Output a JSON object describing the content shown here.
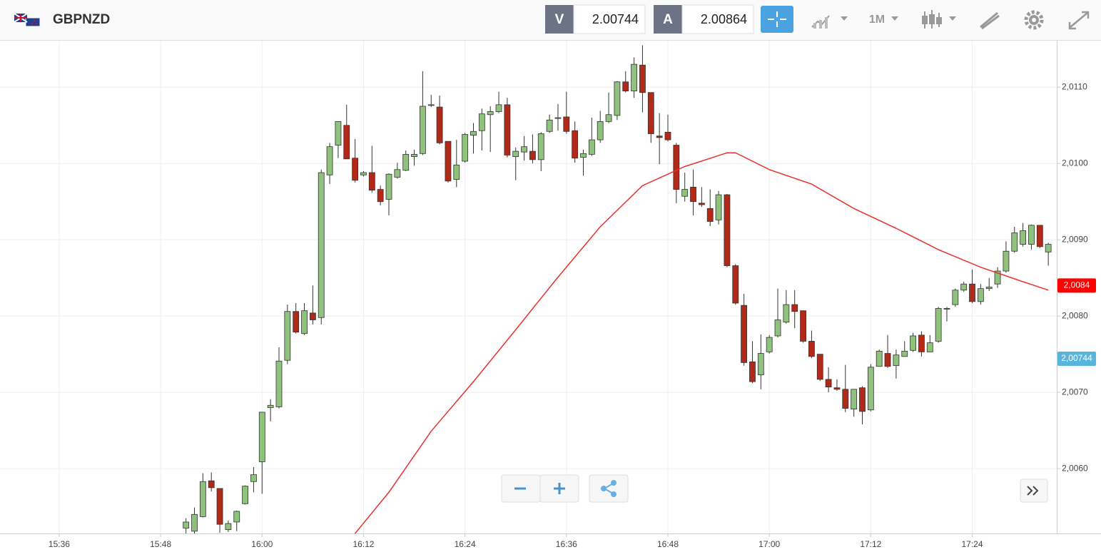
{
  "header": {
    "symbol": "GBPNZD",
    "bid_label": "V",
    "bid": "2.00744",
    "ask_label": "A",
    "ask": "2.00864",
    "timeframe": "1M"
  },
  "chart_data": {
    "type": "candlestick",
    "x": [
      "15:51",
      "15:52",
      "15:53",
      "15:54",
      "15:55",
      "15:56",
      "15:57",
      "15:58",
      "15:59",
      "16:00",
      "16:01",
      "16:02",
      "16:03",
      "16:04",
      "16:05",
      "16:06",
      "16:07",
      "16:08",
      "16:09",
      "16:10",
      "16:11",
      "16:12",
      "16:13",
      "16:14",
      "16:15",
      "16:16",
      "16:17",
      "16:18",
      "16:19",
      "16:20",
      "16:21",
      "16:22",
      "16:23",
      "16:24",
      "16:25",
      "16:26",
      "16:27",
      "16:28",
      "16:29",
      "16:30",
      "16:31",
      "16:32",
      "16:33",
      "16:34",
      "16:35",
      "16:36",
      "16:37",
      "16:38",
      "16:39",
      "16:40",
      "16:41",
      "16:42",
      "16:43",
      "16:44",
      "16:45",
      "16:46",
      "16:47",
      "16:48",
      "16:49",
      "16:50",
      "16:51",
      "16:52",
      "16:53",
      "16:54",
      "16:55",
      "16:56",
      "16:57",
      "16:58",
      "16:59",
      "17:00",
      "17:01",
      "17:02",
      "17:03",
      "17:04",
      "17:05",
      "17:06",
      "17:07",
      "17:08",
      "17:09",
      "17:10",
      "17:11",
      "17:12",
      "17:13",
      "17:14",
      "17:15",
      "17:16",
      "17:17",
      "17:18",
      "17:19",
      "17:20",
      "17:21",
      "17:22",
      "17:23",
      "17:24",
      "17:25",
      "17:26",
      "17:27",
      "17:28",
      "17:29",
      "17:30",
      "17:31",
      "17:32",
      "17:33"
    ],
    "open": [
      2.00522,
      2.00518,
      2.00537,
      2.00584,
      2.00574,
      2.0052,
      2.0053,
      2.00554,
      2.00583,
      2.00609,
      2.0068,
      2.00681,
      2.00742,
      2.00806,
      2.00777,
      2.00804,
      2.00798,
      2.00985,
      2.01024,
      2.0105,
      2.01007,
      2.00985,
      2.00988,
      2.00966,
      2.00953,
      2.00982,
      2.00991,
      2.01009,
      2.01013,
      2.01076,
      2.01074,
      2.01029,
      2.00979,
      2.01003,
      2.01037,
      2.01043,
      2.01064,
      2.01068,
      2.01077,
      2.01009,
      2.01015,
      2.01016,
      2.01005,
      2.01042,
      2.01059,
      2.01061,
      2.01043,
      2.01008,
      2.01012,
      2.01031,
      2.01055,
      2.01063,
      2.01107,
      2.01095,
      2.01129,
      2.01093,
      2.01036,
      2.01041,
      2.01024,
      2.00957,
      2.00969,
      2.00948,
      2.00941,
      2.00926,
      2.00959,
      2.00866,
      2.00814,
      2.0074,
      2.00723,
      2.00753,
      2.00774,
      2.00792,
      2.00815,
      2.00807,
      2.00767,
      2.0075,
      2.00717,
      2.00706,
      2.00704,
      2.00678,
      2.00706,
      2.00677,
      2.00734,
      2.00751,
      2.00735,
      2.00747,
      2.00755,
      2.00775,
      2.00753,
      2.00767,
      2.00809,
      2.00815,
      2.00834,
      2.00842,
      2.00819,
      2.00836,
      2.00842,
      2.00859,
      2.00885,
      2.00894,
      2.00894,
      2.00919,
      2.00884
    ],
    "high": [
      2.00535,
      2.00549,
      2.00594,
      2.00595,
      2.00574,
      2.00532,
      2.00545,
      2.00578,
      2.00602,
      2.00674,
      2.00691,
      2.00759,
      2.00815,
      2.00817,
      2.00817,
      2.0084,
      2.00992,
      2.01027,
      2.01055,
      2.01077,
      2.01032,
      2.0099,
      2.01023,
      2.00971,
      2.00987,
      2.01001,
      2.01017,
      2.01018,
      2.01121,
      2.0109,
      2.01089,
      2.01029,
      2.01031,
      2.0104,
      2.01053,
      2.01072,
      2.01075,
      2.01094,
      2.01086,
      2.01021,
      2.01036,
      2.01038,
      2.01041,
      2.01064,
      2.01078,
      2.01094,
      2.01055,
      2.01018,
      2.0106,
      2.01069,
      2.01093,
      2.01108,
      2.01121,
      2.01139,
      2.01155,
      2.01093,
      2.01066,
      2.01064,
      2.01027,
      2.00988,
      2.00992,
      2.00969,
      2.00966,
      2.00964,
      2.0096,
      2.00868,
      2.00829,
      2.00767,
      2.00776,
      2.00775,
      2.00836,
      2.00834,
      2.00834,
      2.00807,
      2.00781,
      2.0075,
      2.00733,
      2.00717,
      2.00736,
      2.00704,
      2.00708,
      2.00737,
      2.00756,
      2.00775,
      2.00756,
      2.00767,
      2.00778,
      2.0078,
      2.00775,
      2.00812,
      2.00812,
      2.00836,
      2.00845,
      2.00861,
      2.00842,
      2.0085,
      2.00864,
      2.00898,
      2.00917,
      2.00922,
      2.0092,
      2.00919,
      2.00896
    ],
    "low": [
      2.00515,
      2.00515,
      2.00536,
      2.0057,
      2.00516,
      2.00517,
      2.00518,
      2.00553,
      2.00569,
      2.00567,
      2.00662,
      2.00679,
      2.00737,
      2.00777,
      2.00775,
      2.00789,
      2.00789,
      2.00973,
      2.01007,
      2.01006,
      2.00975,
      2.00983,
      2.00962,
      2.00945,
      2.00932,
      2.0098,
      2.0099,
      2.00997,
      2.01011,
      2.01074,
      2.01025,
      2.00975,
      2.00969,
      2.01001,
      2.01013,
      2.01017,
      2.01015,
      2.01066,
      2.01008,
      2.00978,
      2.01004,
      2.01,
      2.0099,
      2.0104,
      2.01043,
      2.01039,
      2.01001,
      2.00984,
      2.0101,
      2.01027,
      2.01053,
      2.01057,
      2.01093,
      2.01086,
      2.01067,
      2.01027,
      2.00999,
      2.01029,
      2.00948,
      2.0095,
      2.00932,
      2.00943,
      2.00918,
      2.0092,
      2.00864,
      2.00815,
      2.00735,
      2.00712,
      2.00704,
      2.00751,
      2.00772,
      2.0079,
      2.00784,
      2.00765,
      2.00745,
      2.00715,
      2.007,
      2.00702,
      2.00674,
      2.00668,
      2.00658,
      2.00675,
      2.00734,
      2.00732,
      2.00718,
      2.00747,
      2.00753,
      2.00747,
      2.00753,
      2.00765,
      2.00793,
      2.00812,
      2.00832,
      2.00817,
      2.00815,
      2.00833,
      2.00837,
      2.00857,
      2.00883,
      2.00891,
      2.00887,
      2.00889,
      2.00866
    ],
    "close": [
      2.0053,
      2.0054,
      2.00583,
      2.00575,
      2.00527,
      2.00528,
      2.00544,
      2.00577,
      2.00592,
      2.00674,
      2.00683,
      2.00741,
      2.00806,
      2.00779,
      2.00807,
      2.00795,
      2.00988,
      2.01022,
      2.01055,
      2.01006,
      2.00978,
      2.00988,
      2.00965,
      2.0095,
      2.00986,
      2.00992,
      2.01012,
      2.01012,
      2.01075,
      2.01077,
      2.01027,
      2.00977,
      2.00998,
      2.01038,
      2.01042,
      2.01065,
      2.01068,
      2.01077,
      2.01011,
      2.01016,
      2.01022,
      2.01005,
      2.01039,
      2.01057,
      2.0106,
      2.01042,
      2.01007,
      2.01013,
      2.01031,
      2.01055,
      2.01064,
      2.01107,
      2.01095,
      2.0113,
      2.01093,
      2.01039,
      2.01034,
      2.01031,
      2.00966,
      2.00966,
      2.0095,
      2.00946,
      2.00924,
      2.00959,
      2.00866,
      2.00817,
      2.00739,
      2.00714,
      2.00751,
      2.00772,
      2.00795,
      2.00815,
      2.00806,
      2.00767,
      2.00747,
      2.00717,
      2.00707,
      2.00704,
      2.00679,
      2.00704,
      2.00675,
      2.00733,
      2.00754,
      2.00734,
      2.00749,
      2.00754,
      2.00774,
      2.00753,
      2.00765,
      2.0081,
      2.0081,
      2.00834,
      2.00842,
      2.00819,
      2.00836,
      2.00838,
      2.00859,
      2.00885,
      2.00909,
      2.00912,
      2.00919,
      2.00891,
      2.00894
    ],
    "up_color": "#8fc27c",
    "down_color": "#b22a17",
    "overlay": {
      "type": "line",
      "color": "#e8322b",
      "x": [
        "16:11",
        "16:15",
        "16:20",
        "16:25",
        "16:30",
        "16:35",
        "16:40",
        "16:45",
        "16:50",
        "16:55",
        "16:56",
        "17:00",
        "17:05",
        "17:10",
        "17:15",
        "17:20",
        "17:25",
        "17:30",
        "17:33"
      ],
      "values": [
        2.00515,
        2.00569,
        2.00649,
        2.00714,
        2.00782,
        2.00851,
        2.00917,
        2.00971,
        2.00996,
        2.01014,
        2.01014,
        2.00992,
        2.00973,
        2.00941,
        2.00915,
        2.00887,
        2.00864,
        2.00845,
        2.00834
      ]
    },
    "xlim": [
      "15:29",
      "17:34"
    ],
    "ylim": [
      2.00515,
      2.01161
    ],
    "xticks": [
      "15:36",
      "15:48",
      "16:00",
      "16:12",
      "16:24",
      "16:36",
      "16:48",
      "17:00",
      "17:12",
      "17:24"
    ],
    "yticks": [
      {
        "value": 2.006,
        "label": "2,0060"
      },
      {
        "value": 2.007,
        "label": "2,0070"
      },
      {
        "value": 2.008,
        "label": "2,0080"
      },
      {
        "value": 2.009,
        "label": "2,0090"
      },
      {
        "value": 2.01,
        "label": "2,0100"
      },
      {
        "value": 2.011,
        "label": "2,0110"
      }
    ],
    "grid": true,
    "price_tags": [
      {
        "value": 2.0084,
        "label": "2,0084",
        "color": "#ff0000"
      },
      {
        "value": 2.00744,
        "label": "2,00744",
        "color": "#58b4dc"
      }
    ]
  }
}
